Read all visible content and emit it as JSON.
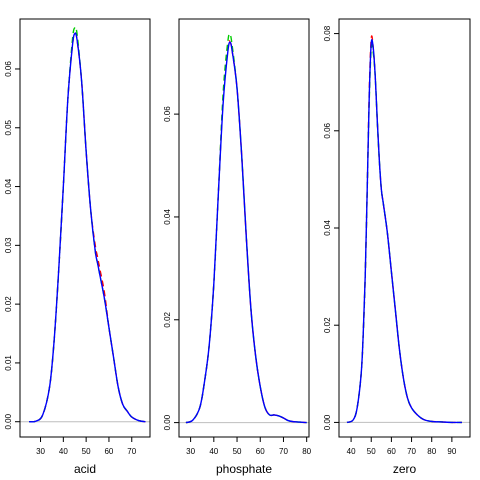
{
  "chart_data": [
    {
      "type": "line",
      "xlabel": "acid",
      "ylabel": "",
      "xlim": [
        21,
        78
      ],
      "ylim": [
        -0.0026,
        0.0685
      ],
      "xticks": [
        30,
        40,
        50,
        60,
        70
      ],
      "yticks": [
        0.0,
        0.01,
        0.02,
        0.03,
        0.04,
        0.05,
        0.06
      ],
      "ytick_labels": [
        "0.00",
        "0.01",
        "0.02",
        "0.03",
        "0.04",
        "0.05",
        "0.06"
      ],
      "series": [
        {
          "color": "#ff0000",
          "dash": "6,4",
          "x": [
            25,
            28,
            31,
            34,
            36,
            38,
            40,
            42,
            44,
            45,
            46,
            48,
            50,
            52,
            54,
            55,
            56,
            58,
            60,
            62,
            64,
            66,
            68,
            70,
            73,
            76
          ],
          "y": [
            0,
            0.0001,
            0.0012,
            0.006,
            0.014,
            0.026,
            0.04,
            0.055,
            0.064,
            0.066,
            0.065,
            0.058,
            0.046,
            0.036,
            0.03,
            0.028,
            0.026,
            0.022,
            0.016,
            0.011,
            0.006,
            0.003,
            0.0018,
            0.0008,
            0.0002,
            0
          ]
        },
        {
          "color": "#00cc00",
          "dash": "6,4",
          "x": [
            25,
            28,
            31,
            34,
            36,
            38,
            40,
            42,
            44,
            45,
            46,
            48,
            50,
            52,
            54,
            55,
            56,
            58,
            60,
            62,
            64,
            66,
            68,
            70,
            73,
            76
          ],
          "y": [
            0,
            0.0001,
            0.0012,
            0.006,
            0.014,
            0.026,
            0.04,
            0.055,
            0.065,
            0.067,
            0.066,
            0.058,
            0.046,
            0.036,
            0.029,
            0.027,
            0.025,
            0.021,
            0.016,
            0.011,
            0.006,
            0.003,
            0.0018,
            0.0008,
            0.0002,
            0
          ]
        },
        {
          "color": "#0000ff",
          "dash": "",
          "x": [
            25,
            28,
            31,
            34,
            36,
            38,
            40,
            42,
            44,
            45,
            46,
            48,
            50,
            52,
            54,
            55,
            56,
            58,
            60,
            62,
            64,
            66,
            68,
            70,
            73,
            76
          ],
          "y": [
            0,
            0.0001,
            0.0012,
            0.006,
            0.014,
            0.026,
            0.04,
            0.055,
            0.064,
            0.066,
            0.065,
            0.058,
            0.046,
            0.036,
            0.029,
            0.027,
            0.025,
            0.021,
            0.016,
            0.011,
            0.006,
            0.003,
            0.0018,
            0.0008,
            0.0002,
            0
          ]
        }
      ]
    },
    {
      "type": "line",
      "xlabel": "phosphate",
      "ylabel": "",
      "xlim": [
        25,
        81
      ],
      "ylim": [
        -0.0028,
        0.0785
      ],
      "xticks": [
        30,
        40,
        50,
        60,
        70,
        80
      ],
      "yticks": [
        0.0,
        0.02,
        0.04,
        0.06
      ],
      "ytick_labels": [
        "0.00",
        "0.02",
        "0.04",
        "0.06"
      ],
      "series": [
        {
          "color": "#ff0000",
          "dash": "6,4",
          "x": [
            28,
            31,
            34,
            36,
            38,
            40,
            42,
            44,
            46,
            47,
            48,
            50,
            52,
            54,
            56,
            58,
            60,
            62,
            64,
            66,
            68,
            70,
            72,
            74,
            77,
            80
          ],
          "y": [
            0,
            0.0005,
            0.003,
            0.008,
            0.015,
            0.027,
            0.045,
            0.063,
            0.073,
            0.074,
            0.072,
            0.065,
            0.052,
            0.036,
            0.022,
            0.013,
            0.007,
            0.003,
            0.0015,
            0.0015,
            0.0013,
            0.0009,
            0.0004,
            0.0002,
            0.0001,
            0
          ]
        },
        {
          "color": "#00cc00",
          "dash": "6,4",
          "x": [
            28,
            31,
            34,
            36,
            38,
            40,
            42,
            44,
            46,
            47,
            48,
            50,
            52,
            54,
            56,
            58,
            60,
            62,
            64,
            66,
            68,
            70,
            72,
            74,
            77,
            80
          ],
          "y": [
            0,
            0.0005,
            0.003,
            0.008,
            0.015,
            0.027,
            0.045,
            0.064,
            0.074,
            0.0755,
            0.073,
            0.065,
            0.052,
            0.036,
            0.022,
            0.013,
            0.007,
            0.003,
            0.0015,
            0.0015,
            0.0013,
            0.0009,
            0.0004,
            0.0002,
            0.0001,
            0
          ]
        },
        {
          "color": "#0000ff",
          "dash": "",
          "x": [
            28,
            31,
            34,
            36,
            38,
            40,
            42,
            44,
            46,
            47,
            48,
            50,
            52,
            54,
            56,
            58,
            60,
            62,
            64,
            66,
            68,
            70,
            72,
            74,
            77,
            80
          ],
          "y": [
            0,
            0.0005,
            0.003,
            0.008,
            0.015,
            0.027,
            0.045,
            0.062,
            0.072,
            0.074,
            0.072,
            0.065,
            0.052,
            0.036,
            0.022,
            0.013,
            0.007,
            0.003,
            0.0015,
            0.0015,
            0.0013,
            0.0009,
            0.0004,
            0.0002,
            0.0001,
            0
          ]
        }
      ]
    },
    {
      "type": "line",
      "xlabel": "zero",
      "ylabel": "",
      "xlim": [
        34,
        99
      ],
      "ylim": [
        -0.003,
        0.083
      ],
      "xticks": [
        40,
        50,
        60,
        70,
        80,
        90
      ],
      "yticks": [
        0.0,
        0.02,
        0.04,
        0.06,
        0.08
      ],
      "ytick_labels": [
        "0.00",
        "0.02",
        "0.04",
        "0.06",
        "0.08"
      ],
      "series": [
        {
          "color": "#ff0000",
          "dash": "6,4",
          "x": [
            38,
            41,
            43,
            45,
            46,
            47,
            48,
            49,
            50,
            51,
            52,
            53,
            54,
            55,
            56,
            58,
            60,
            62,
            64,
            66,
            68,
            70,
            73,
            76,
            80,
            85,
            90,
            95
          ],
          "y": [
            0,
            0.0005,
            0.003,
            0.01,
            0.018,
            0.03,
            0.048,
            0.068,
            0.079,
            0.077,
            0.071,
            0.062,
            0.054,
            0.048,
            0.045,
            0.039,
            0.031,
            0.023,
            0.015,
            0.009,
            0.005,
            0.003,
            0.0015,
            0.0006,
            0.0002,
            0.0001,
            0,
            0
          ]
        },
        {
          "color": "#00cc00",
          "dash": "6,4",
          "x": [
            38,
            41,
            43,
            45,
            46,
            47,
            48,
            49,
            50,
            51,
            52,
            53,
            54,
            55,
            56,
            58,
            60,
            62,
            64,
            66,
            68,
            70,
            73,
            76,
            80,
            85,
            90,
            95
          ],
          "y": [
            0,
            0.0005,
            0.003,
            0.01,
            0.018,
            0.03,
            0.048,
            0.066,
            0.077,
            0.076,
            0.071,
            0.062,
            0.054,
            0.048,
            0.045,
            0.039,
            0.031,
            0.023,
            0.015,
            0.009,
            0.005,
            0.003,
            0.0015,
            0.0006,
            0.0002,
            0.0001,
            0,
            0
          ]
        },
        {
          "color": "#0000ff",
          "dash": "",
          "x": [
            38,
            41,
            43,
            45,
            46,
            47,
            48,
            49,
            50,
            51,
            52,
            53,
            54,
            55,
            56,
            58,
            60,
            62,
            64,
            66,
            68,
            70,
            73,
            76,
            80,
            85,
            90,
            95
          ],
          "y": [
            0,
            0.0005,
            0.003,
            0.01,
            0.018,
            0.03,
            0.048,
            0.067,
            0.078,
            0.077,
            0.071,
            0.062,
            0.054,
            0.048,
            0.045,
            0.039,
            0.031,
            0.023,
            0.015,
            0.009,
            0.005,
            0.003,
            0.0015,
            0.0006,
            0.0002,
            0.0001,
            0,
            0
          ]
        }
      ]
    }
  ]
}
